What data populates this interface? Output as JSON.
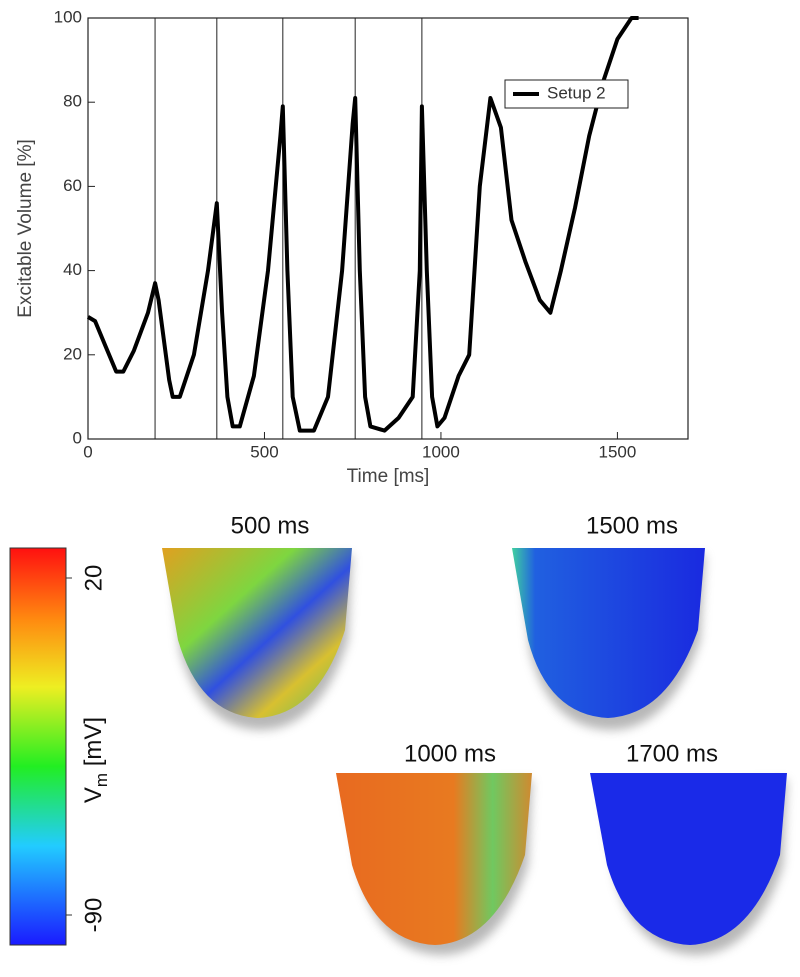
{
  "chart_data": {
    "type": "line",
    "x_label": "Time [ms]",
    "y_label": "Excitable Volume [%]",
    "x": [
      0,
      20,
      50,
      80,
      100,
      130,
      170,
      190,
      200,
      230,
      240,
      260,
      300,
      340,
      365,
      380,
      395,
      410,
      430,
      470,
      510,
      545,
      552,
      565,
      580,
      600,
      640,
      680,
      720,
      750,
      757,
      770,
      785,
      800,
      840,
      880,
      920,
      940,
      946,
      960,
      975,
      990,
      1010,
      1050,
      1080,
      1110,
      1140,
      1170,
      1200,
      1240,
      1280,
      1310,
      1340,
      1380,
      1420,
      1460,
      1500,
      1540,
      1560
    ],
    "series": [
      {
        "name": "Setup 2",
        "color": "#000000",
        "values": [
          29,
          28,
          22,
          16,
          16,
          21,
          30,
          37,
          33,
          14,
          10,
          10,
          20,
          40,
          56,
          30,
          10,
          3,
          3,
          15,
          40,
          72,
          79,
          40,
          10,
          2,
          2,
          10,
          40,
          75,
          81,
          40,
          10,
          3,
          2,
          5,
          10,
          40,
          79,
          40,
          10,
          3,
          5,
          15,
          20,
          60,
          81,
          74,
          52,
          42,
          33,
          30,
          40,
          55,
          72,
          85,
          95,
          100,
          100
        ]
      }
    ],
    "vlines": [
      190,
      365,
      552,
      757,
      946
    ],
    "xlim": [
      0,
      1700
    ],
    "ylim": [
      0,
      100
    ],
    "xticks": [
      0,
      500,
      1000,
      1500
    ],
    "yticks": [
      0,
      20,
      40,
      60,
      80,
      100
    ],
    "legend": "upper right",
    "grid": false
  },
  "colorbar": {
    "label": "V",
    "label_subscript": "m",
    "label_unit": "[mV]",
    "ticks": [
      -90,
      20
    ]
  },
  "panels": [
    {
      "label": "500 ms"
    },
    {
      "label": "1500 ms"
    },
    {
      "label": "1000 ms"
    },
    {
      "label": "1700 ms"
    }
  ]
}
